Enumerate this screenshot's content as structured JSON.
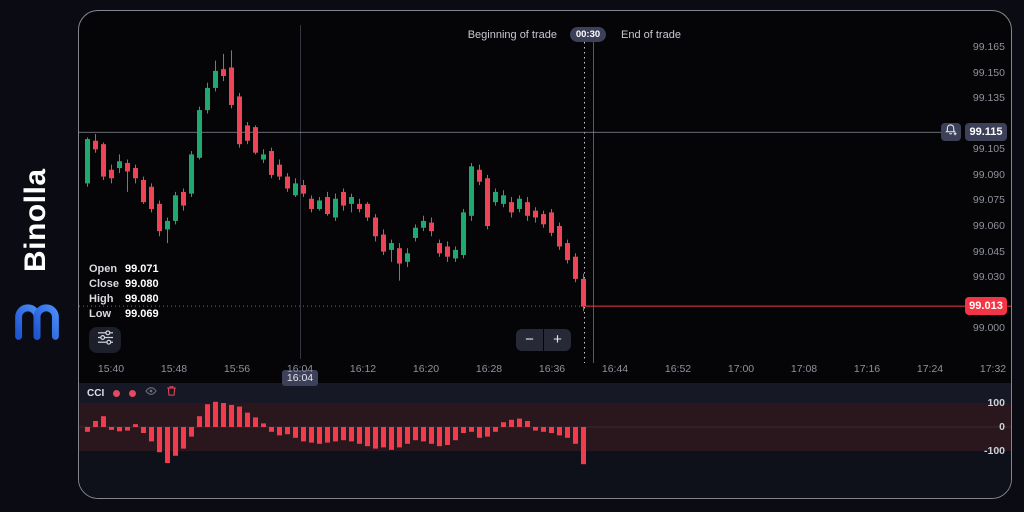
{
  "brand": {
    "name": "Binolla"
  },
  "chart_header": {
    "beginning_of_trade_label": "Beginning of trade",
    "trade_countdown": "00:30",
    "end_of_trade_label": "End of trade"
  },
  "ohlc_legend": {
    "open_label": "Open",
    "open_value": "99.071",
    "close_label": "Close",
    "close_value": "99.080",
    "high_label": "High",
    "high_value": "99.080",
    "low_label": "Low",
    "low_value": "99.069"
  },
  "controls": {
    "zoom_out_label": "−",
    "zoom_in_label": "+"
  },
  "price_axis": {
    "tick_labels": [
      "99.165",
      "99.150",
      "99.135",
      "99.105",
      "99.090",
      "99.075",
      "99.060",
      "99.045",
      "99.030",
      "99.000"
    ],
    "current_price_badge": "99.115",
    "trade_price_badge": "99.013"
  },
  "time_axis": {
    "tick_labels": [
      "15:40",
      "15:48",
      "15:56",
      "16:04",
      "16:12",
      "16:20",
      "16:28",
      "16:36",
      "16:44",
      "16:52",
      "17:00",
      "17:08",
      "17:16",
      "17:24",
      "17:32"
    ],
    "crosshair_time_badge": "16:04"
  },
  "indicator_panel": {
    "name": "CCI",
    "axis_labels": [
      "100",
      "0",
      "-100"
    ]
  },
  "colors": {
    "bull": "#1fa971",
    "bear": "#ef4456",
    "indicator_bar": "#f23c4e",
    "trade_line": "#f23645",
    "current_price_line": "#8b8f9a",
    "badge_bg": "#3d4059",
    "trade_badge_bg": "#f23645",
    "accent_blue": "#2e6bee"
  },
  "chart_data": {
    "type": "candlestick",
    "title": "Binolla price chart with trade markers",
    "y_axis": {
      "min": 98.995,
      "max": 99.165,
      "tick_step": 0.015
    },
    "x_axis": {
      "start": "15:40",
      "end": "17:32",
      "tick_interval_min": 8
    },
    "current_price": 99.115,
    "trade_open_price": 99.013,
    "crosshair_time": "16:04",
    "candles": [
      [
        99.085,
        99.112,
        99.083,
        99.111
      ],
      [
        99.11,
        99.114,
        99.103,
        99.105
      ],
      [
        99.108,
        99.109,
        99.087,
        99.089
      ],
      [
        99.093,
        99.096,
        99.085,
        99.088
      ],
      [
        99.094,
        99.102,
        99.091,
        99.098
      ],
      [
        99.097,
        99.099,
        99.08,
        99.092
      ],
      [
        99.094,
        99.096,
        99.085,
        99.088
      ],
      [
        99.087,
        99.089,
        99.073,
        99.074
      ],
      [
        99.083,
        99.085,
        99.068,
        99.07
      ],
      [
        99.073,
        99.075,
        99.054,
        99.057
      ],
      [
        99.058,
        99.065,
        99.05,
        99.063
      ],
      [
        99.063,
        99.08,
        99.061,
        99.078
      ],
      [
        99.08,
        99.082,
        99.069,
        99.072
      ],
      [
        99.079,
        99.104,
        99.077,
        99.102
      ],
      [
        99.1,
        99.13,
        99.099,
        99.128
      ],
      [
        99.128,
        99.144,
        99.126,
        99.141
      ],
      [
        99.141,
        99.157,
        99.139,
        99.151
      ],
      [
        99.152,
        99.161,
        99.145,
        99.148
      ],
      [
        99.153,
        99.163,
        99.129,
        99.131
      ],
      [
        99.136,
        99.138,
        99.106,
        99.108
      ],
      [
        99.119,
        99.121,
        99.108,
        99.11
      ],
      [
        99.118,
        99.119,
        99.102,
        99.103
      ],
      [
        99.099,
        99.105,
        99.097,
        99.102
      ],
      [
        99.104,
        99.106,
        99.088,
        99.09
      ],
      [
        99.096,
        99.099,
        99.087,
        99.089
      ],
      [
        99.089,
        99.091,
        99.08,
        99.082
      ],
      [
        99.078,
        99.088,
        99.077,
        99.085
      ],
      [
        99.084,
        99.087,
        99.077,
        99.079
      ],
      [
        99.076,
        99.078,
        99.068,
        99.07
      ],
      [
        99.07,
        99.077,
        99.069,
        99.075
      ],
      [
        99.077,
        99.08,
        99.066,
        99.067
      ],
      [
        99.065,
        99.079,
        99.063,
        99.076
      ],
      [
        99.08,
        99.082,
        99.069,
        99.072
      ],
      [
        99.073,
        99.079,
        99.068,
        99.077
      ],
      [
        99.073,
        99.076,
        99.068,
        99.07
      ],
      [
        99.073,
        99.074,
        99.063,
        99.065
      ],
      [
        99.065,
        99.067,
        99.051,
        99.054
      ],
      [
        99.055,
        99.058,
        99.043,
        99.045
      ],
      [
        99.046,
        99.052,
        99.039,
        99.05
      ],
      [
        99.047,
        99.05,
        99.028,
        99.038
      ],
      [
        99.039,
        99.047,
        99.036,
        99.044
      ],
      [
        99.053,
        99.061,
        99.051,
        99.059
      ],
      [
        99.059,
        99.066,
        99.057,
        99.063
      ],
      [
        99.062,
        99.065,
        99.054,
        99.057
      ],
      [
        99.05,
        99.052,
        99.042,
        99.044
      ],
      [
        99.048,
        99.051,
        99.039,
        99.042
      ],
      [
        99.041,
        99.048,
        99.039,
        99.046
      ],
      [
        99.043,
        99.07,
        99.041,
        99.068
      ],
      [
        99.066,
        99.097,
        99.063,
        99.095
      ],
      [
        99.093,
        99.096,
        99.084,
        99.086
      ],
      [
        99.088,
        99.09,
        99.058,
        99.06
      ],
      [
        99.074,
        99.082,
        99.072,
        99.08
      ],
      [
        99.073,
        99.081,
        99.071,
        99.078
      ],
      [
        99.074,
        99.077,
        99.065,
        99.068
      ],
      [
        99.07,
        99.078,
        99.068,
        99.076
      ],
      [
        99.074,
        99.077,
        99.063,
        99.066
      ],
      [
        99.069,
        99.071,
        99.062,
        99.065
      ],
      [
        99.067,
        99.069,
        99.059,
        99.061
      ],
      [
        99.068,
        99.07,
        99.054,
        99.056
      ],
      [
        99.06,
        99.062,
        99.046,
        99.048
      ],
      [
        99.05,
        99.052,
        99.038,
        99.04
      ],
      [
        99.042,
        99.044,
        99.027,
        99.029
      ],
      [
        99.029,
        99.032,
        99.01,
        99.013
      ]
    ],
    "indicator": {
      "type": "histogram",
      "name": "CCI",
      "upper": 100,
      "lower": -100,
      "values": [
        -20,
        25,
        45,
        -12,
        -18,
        -15,
        12,
        -25,
        -60,
        -105,
        -150,
        -120,
        -90,
        -40,
        45,
        95,
        105,
        100,
        92,
        85,
        60,
        40,
        15,
        -20,
        -35,
        -30,
        -45,
        -60,
        -65,
        -70,
        -65,
        -60,
        -55,
        -60,
        -70,
        -80,
        -90,
        -85,
        -95,
        -85,
        -70,
        -55,
        -60,
        -70,
        -80,
        -75,
        -55,
        -25,
        -20,
        -45,
        -40,
        -20,
        20,
        30,
        35,
        25,
        -15,
        -20,
        -25,
        -35,
        -45,
        -70,
        -155
      ]
    }
  }
}
